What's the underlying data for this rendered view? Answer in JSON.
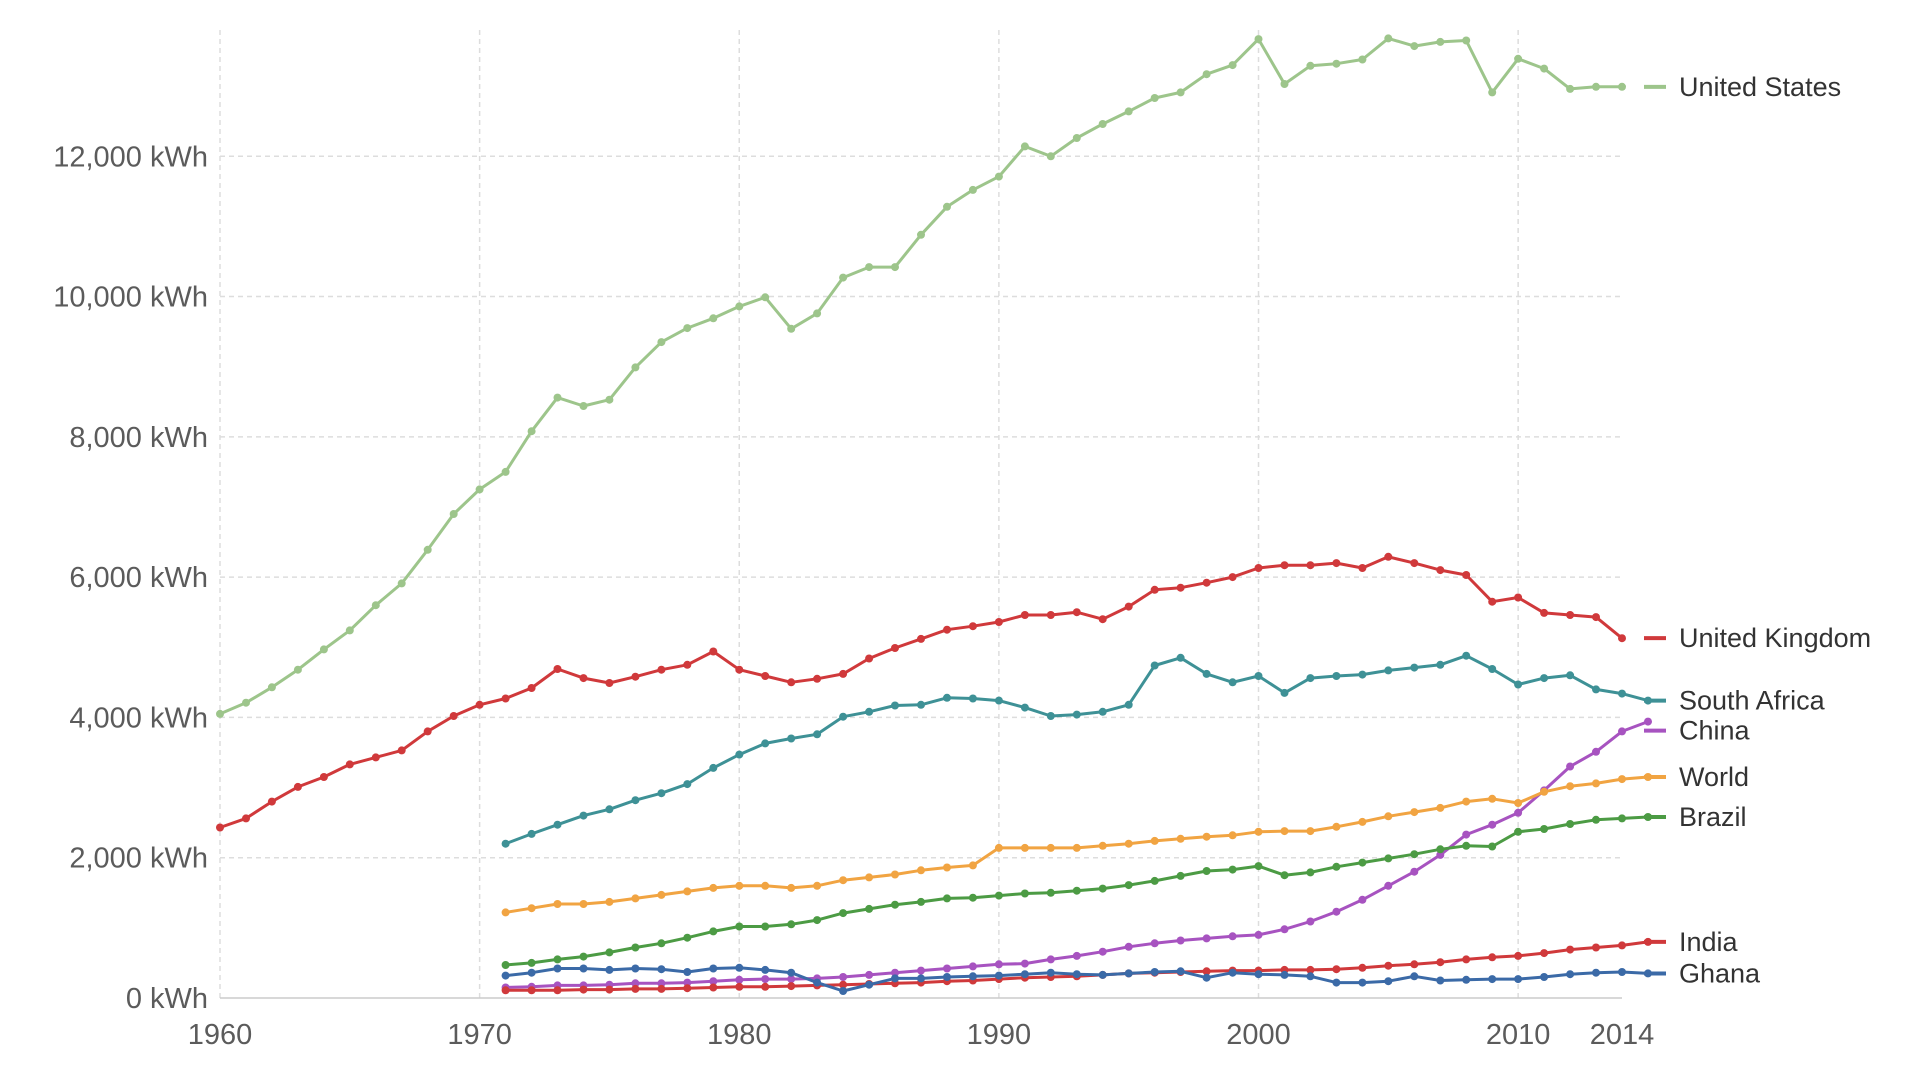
{
  "chart_data": {
    "type": "line",
    "title": "",
    "xlabel": "",
    "ylabel": "",
    "xlim": [
      1960,
      2014
    ],
    "ylim": [
      0,
      13800
    ],
    "x_ticks": [
      1960,
      1970,
      1980,
      1990,
      2000,
      2010,
      2014
    ],
    "y_ticks": [
      {
        "value": 0,
        "label": "0 kWh"
      },
      {
        "value": 2000,
        "label": "2,000 kWh"
      },
      {
        "value": 4000,
        "label": "4,000 kWh"
      },
      {
        "value": 6000,
        "label": "6,000 kWh"
      },
      {
        "value": 8000,
        "label": "8,000 kWh"
      },
      {
        "value": 10000,
        "label": "10,000 kWh"
      },
      {
        "value": 12000,
        "label": "12,000 kWh"
      }
    ],
    "grid": true,
    "legend": "right, labels at line ends",
    "series": [
      {
        "name": "United States",
        "color": "#9dc58b",
        "start": 1960,
        "values": [
          4050,
          4210,
          4430,
          4680,
          4970,
          5240,
          5600,
          5910,
          6390,
          6900,
          7250,
          7500,
          8080,
          8560,
          8440,
          8530,
          8990,
          9350,
          9550,
          9690,
          9860,
          9990,
          9540,
          9760,
          10270,
          10420,
          10420,
          10880,
          11280,
          11520,
          11710,
          12140,
          12000,
          12260,
          12460,
          12640,
          12830,
          12910,
          13170,
          13300,
          13670,
          13030,
          13290,
          13320,
          13380,
          13680,
          13570,
          13630,
          13650,
          12910,
          13390,
          13250,
          12960,
          12990,
          12990
        ]
      },
      {
        "name": "United Kingdom",
        "color": "#d0393b",
        "start": 1960,
        "values": [
          2430,
          2560,
          2800,
          3010,
          3150,
          3330,
          3430,
          3530,
          3800,
          4020,
          4180,
          4270,
          4420,
          4690,
          4560,
          4490,
          4580,
          4680,
          4750,
          4940,
          4680,
          4590,
          4500,
          4550,
          4620,
          4840,
          4990,
          5120,
          5250,
          5300,
          5360,
          5460,
          5460,
          5500,
          5400,
          5580,
          5820,
          5850,
          5920,
          6000,
          6130,
          6170,
          6170,
          6200,
          6130,
          6290,
          6200,
          6100,
          6030,
          5650,
          5710,
          5490,
          5460,
          5430,
          5130
        ]
      },
      {
        "name": "South Africa",
        "color": "#3e9196",
        "start": 1971,
        "values": [
          2200,
          2340,
          2470,
          2600,
          2690,
          2820,
          2920,
          3050,
          3280,
          3470,
          3630,
          3700,
          3760,
          4010,
          4080,
          4170,
          4180,
          4280,
          4270,
          4240,
          4140,
          4020,
          4040,
          4080,
          4180,
          4740,
          4850,
          4620,
          4500,
          4590,
          4350,
          4560,
          4590,
          4610,
          4670,
          4710,
          4750,
          4880,
          4690,
          4470,
          4560,
          4600,
          4400,
          4340,
          4240
        ]
      },
      {
        "name": "China",
        "color": "#a753c0",
        "start": 1971,
        "values": [
          150,
          160,
          180,
          180,
          190,
          210,
          210,
          220,
          240,
          260,
          270,
          270,
          280,
          300,
          330,
          360,
          390,
          420,
          450,
          480,
          490,
          550,
          600,
          660,
          730,
          780,
          820,
          850,
          880,
          900,
          980,
          1090,
          1230,
          1400,
          1600,
          1800,
          2040,
          2330,
          2470,
          2640,
          2960,
          3300,
          3510,
          3800,
          3940
        ]
      },
      {
        "name": "World",
        "color": "#f1a442",
        "start": 1971,
        "values": [
          1220,
          1280,
          1340,
          1340,
          1370,
          1420,
          1470,
          1520,
          1570,
          1600,
          1600,
          1570,
          1600,
          1680,
          1720,
          1760,
          1820,
          1860,
          1890,
          2140,
          2140,
          2140,
          2140,
          2170,
          2200,
          2240,
          2270,
          2300,
          2320,
          2370,
          2380,
          2380,
          2440,
          2510,
          2590,
          2650,
          2710,
          2800,
          2840,
          2780,
          2940,
          3020,
          3060,
          3120,
          3150
        ]
      },
      {
        "name": "Brazil",
        "color": "#4c9b44",
        "start": 1971,
        "values": [
          470,
          500,
          550,
          590,
          650,
          720,
          780,
          860,
          950,
          1020,
          1020,
          1050,
          1110,
          1210,
          1270,
          1330,
          1370,
          1420,
          1430,
          1460,
          1490,
          1500,
          1530,
          1560,
          1610,
          1670,
          1740,
          1810,
          1830,
          1880,
          1750,
          1790,
          1870,
          1930,
          1990,
          2050,
          2120,
          2170,
          2160,
          2370,
          2410,
          2480,
          2540,
          2560,
          2580
        ]
      },
      {
        "name": "India",
        "color": "#d0393b",
        "start": 1971,
        "values": [
          110,
          110,
          110,
          120,
          120,
          130,
          130,
          140,
          150,
          160,
          160,
          170,
          180,
          190,
          200,
          210,
          220,
          240,
          250,
          270,
          290,
          300,
          310,
          330,
          350,
          360,
          370,
          380,
          390,
          390,
          400,
          400,
          410,
          430,
          460,
          480,
          510,
          550,
          580,
          600,
          640,
          690,
          720,
          750,
          800
        ]
      },
      {
        "name": "Ghana",
        "color": "#3b6aa7",
        "start": 1971,
        "values": [
          320,
          360,
          420,
          420,
          400,
          420,
          410,
          370,
          420,
          430,
          400,
          360,
          220,
          100,
          190,
          280,
          280,
          300,
          310,
          320,
          340,
          360,
          340,
          330,
          350,
          370,
          380,
          290,
          360,
          340,
          330,
          310,
          220,
          220,
          240,
          310,
          250,
          260,
          270,
          270,
          300,
          340,
          360,
          370,
          350
        ]
      }
    ]
  }
}
